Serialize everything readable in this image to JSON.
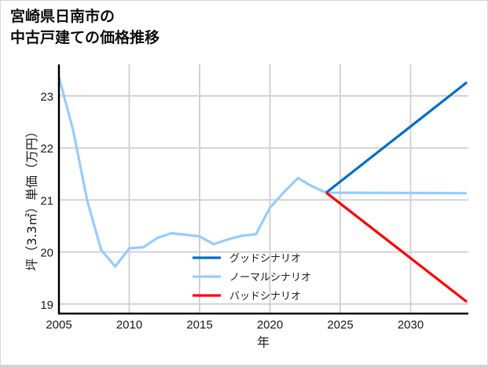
{
  "title": "宮崎県日南市の\n中古戸建ての価格推移",
  "colors": {
    "good": "#0070c8",
    "normal": "#99ccff",
    "bad": "#ff0000",
    "grid": "#d3d3d3",
    "axis": "#000000"
  },
  "chart_data": {
    "type": "line",
    "title": "宮崎県日南市の中古戸建ての価格推移",
    "xlabel": "年",
    "ylabel": "坪（3.3㎡）単価（万円）",
    "xlim": [
      2005,
      2034
    ],
    "ylim": [
      18.8,
      23.4
    ],
    "xticks": [
      2005,
      2010,
      2015,
      2020,
      2025,
      2030
    ],
    "yticks": [
      19,
      20,
      21,
      22,
      23
    ],
    "grid": true,
    "legend_position": "lower center",
    "series": [
      {
        "name": "グッドシナリオ",
        "color": "#0070c8",
        "x": [
          2024,
          2034
        ],
        "values": [
          21.14,
          23.26
        ]
      },
      {
        "name": "ノーマルシナリオ",
        "color": "#99ccff",
        "x": [
          2005,
          2006,
          2007,
          2008,
          2009,
          2010,
          2011,
          2012,
          2013,
          2014,
          2015,
          2016,
          2017,
          2018,
          2019,
          2020,
          2021,
          2022,
          2023,
          2024,
          2034
        ],
        "values": [
          23.36,
          22.35,
          21.0,
          20.04,
          19.72,
          20.07,
          20.09,
          20.27,
          20.36,
          20.33,
          20.3,
          20.15,
          20.24,
          20.31,
          20.34,
          20.85,
          21.15,
          21.42,
          21.26,
          21.14,
          21.13
        ]
      },
      {
        "name": "バッドシナリオ",
        "color": "#ff0000",
        "x": [
          2024,
          2034
        ],
        "values": [
          21.14,
          19.04
        ]
      }
    ]
  }
}
